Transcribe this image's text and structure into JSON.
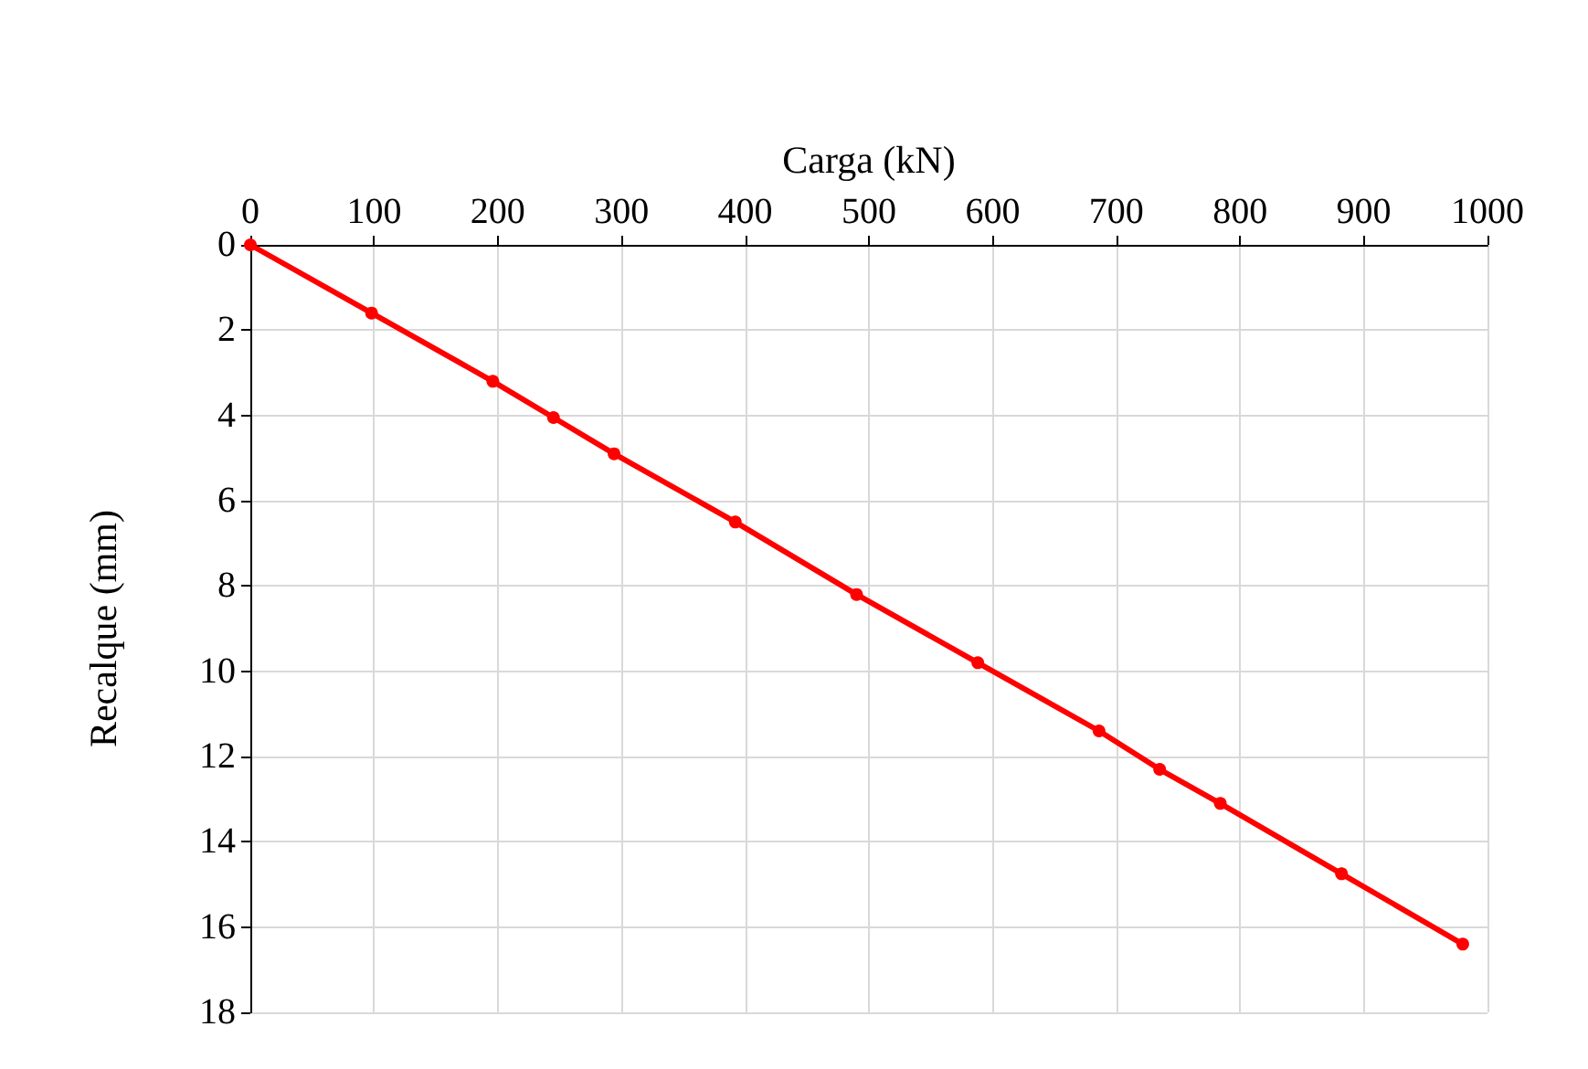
{
  "chart_data": {
    "type": "line",
    "xlabel": "Carga (kN)",
    "ylabel": "Recalque (mm)",
    "x": [
      0,
      98,
      196,
      245,
      294,
      392,
      490,
      588,
      686,
      735,
      784,
      882,
      980
    ],
    "series": [
      {
        "color": "#ff0000",
        "values": [
          0,
          1.6,
          3.2,
          4.05,
          4.9,
          6.5,
          8.2,
          9.8,
          11.4,
          12.3,
          13.1,
          14.75,
          16.4
        ]
      }
    ],
    "xlim": [
      0,
      1000
    ],
    "xticks": [
      0,
      100,
      200,
      300,
      400,
      500,
      600,
      700,
      800,
      900,
      1000
    ],
    "ylim": [
      18,
      0
    ],
    "yticks": [
      0,
      2,
      4,
      6,
      8,
      10,
      12,
      14,
      16,
      18
    ],
    "grid": true,
    "marker": "circle",
    "line_style": "solid"
  }
}
